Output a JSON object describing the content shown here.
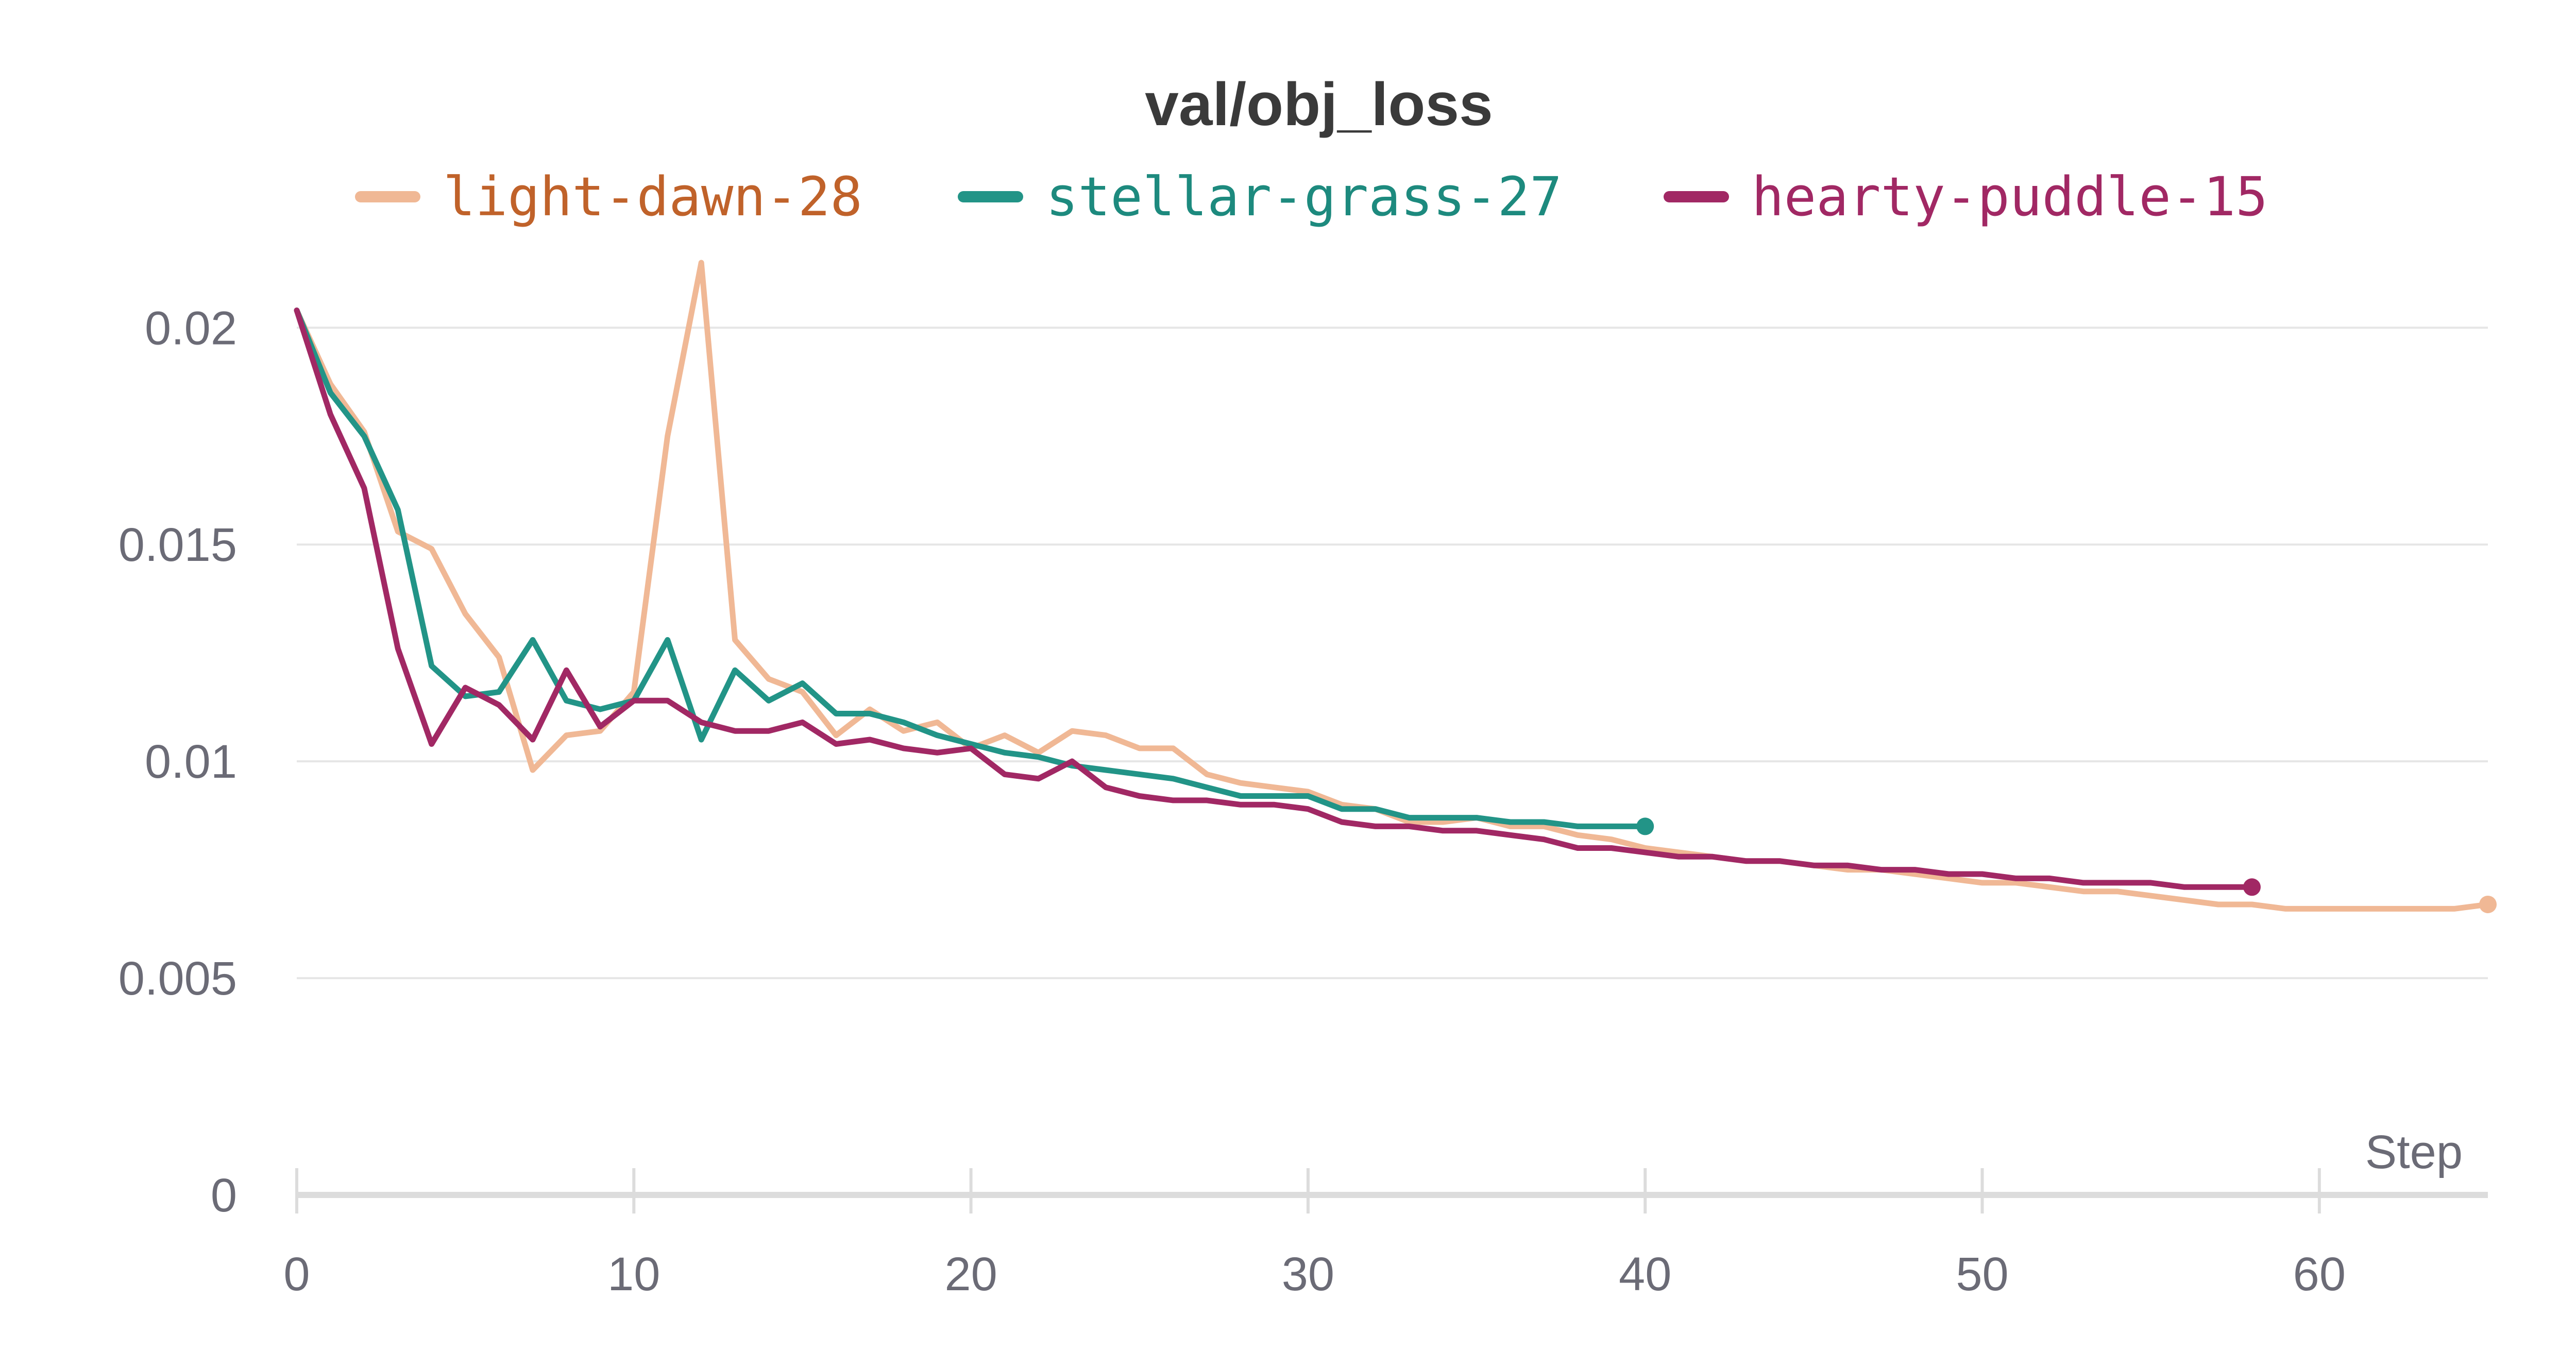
{
  "chart_data": {
    "type": "line",
    "title": "val/obj_loss",
    "xlabel": "Step",
    "ylabel": "",
    "xlim": [
      0,
      65
    ],
    "ylim": [
      0,
      0.0215
    ],
    "x_ticks": [
      "0",
      "10",
      "20",
      "30",
      "40",
      "50",
      "60"
    ],
    "y_ticks": [
      "0",
      "0.005",
      "0.01",
      "0.015",
      "0.02"
    ],
    "grid": true,
    "legend_position": "top-center",
    "series": [
      {
        "name": "light-dawn-28",
        "color": "#f0b895",
        "label_color": "#c0622a",
        "x": [
          0,
          1,
          2,
          3,
          4,
          5,
          6,
          7,
          8,
          9,
          10,
          11,
          12,
          13,
          14,
          15,
          16,
          17,
          18,
          19,
          20,
          21,
          22,
          23,
          24,
          25,
          26,
          27,
          28,
          29,
          30,
          31,
          32,
          33,
          34,
          35,
          36,
          37,
          38,
          39,
          40,
          41,
          42,
          43,
          44,
          45,
          46,
          47,
          48,
          49,
          50,
          51,
          52,
          53,
          54,
          55,
          56,
          57,
          58,
          59,
          60,
          61,
          62,
          63,
          64,
          65
        ],
        "values": [
          0.0204,
          0.0187,
          0.0176,
          0.0153,
          0.0149,
          0.0134,
          0.0124,
          0.0098,
          0.0106,
          0.0107,
          0.0116,
          0.0175,
          0.0215,
          0.0128,
          0.0119,
          0.0116,
          0.0106,
          0.0112,
          0.0107,
          0.0109,
          0.0103,
          0.0106,
          0.0102,
          0.0107,
          0.0106,
          0.0103,
          0.0103,
          0.0097,
          0.0095,
          0.0094,
          0.0093,
          0.009,
          0.0089,
          0.0086,
          0.0086,
          0.0087,
          0.0085,
          0.0085,
          0.0083,
          0.0082,
          0.008,
          0.0079,
          0.0078,
          0.0077,
          0.0077,
          0.0076,
          0.0075,
          0.0075,
          0.0074,
          0.0073,
          0.0072,
          0.0072,
          0.0071,
          0.007,
          0.007,
          0.0069,
          0.0068,
          0.0067,
          0.0067,
          0.0066,
          0.0066,
          0.0066,
          0.0066,
          0.0066,
          0.0066,
          0.0067
        ]
      },
      {
        "name": "stellar-grass-27",
        "color": "#229487",
        "label_color": "#1d8a7e",
        "x": [
          0,
          1,
          2,
          3,
          4,
          5,
          6,
          7,
          8,
          9,
          10,
          11,
          12,
          13,
          14,
          15,
          16,
          17,
          18,
          19,
          20,
          21,
          22,
          23,
          24,
          25,
          26,
          27,
          28,
          29,
          30,
          31,
          32,
          33,
          34,
          35,
          36,
          37,
          38,
          39,
          40
        ],
        "values": [
          0.0204,
          0.0185,
          0.0175,
          0.0158,
          0.0122,
          0.0115,
          0.0116,
          0.0128,
          0.0114,
          0.0112,
          0.0114,
          0.0128,
          0.0105,
          0.0121,
          0.0114,
          0.0118,
          0.0111,
          0.0111,
          0.0109,
          0.0106,
          0.0104,
          0.0102,
          0.0101,
          0.0099,
          0.0098,
          0.0097,
          0.0096,
          0.0094,
          0.0092,
          0.0092,
          0.0092,
          0.0089,
          0.0089,
          0.0087,
          0.0087,
          0.0087,
          0.0086,
          0.0086,
          0.0085,
          0.0085,
          0.0085
        ]
      },
      {
        "name": "hearty-puddle-15",
        "color": "#a12864",
        "label_color": "#a12864",
        "x": [
          0,
          1,
          2,
          3,
          4,
          5,
          6,
          7,
          8,
          9,
          10,
          11,
          12,
          13,
          14,
          15,
          16,
          17,
          18,
          19,
          20,
          21,
          22,
          23,
          24,
          25,
          26,
          27,
          28,
          29,
          30,
          31,
          32,
          33,
          34,
          35,
          36,
          37,
          38,
          39,
          40,
          41,
          42,
          43,
          44,
          45,
          46,
          47,
          48,
          49,
          50,
          51,
          52,
          53,
          54,
          55,
          56,
          57,
          58
        ],
        "values": [
          0.0204,
          0.018,
          0.0163,
          0.0126,
          0.0104,
          0.0117,
          0.0113,
          0.0105,
          0.0121,
          0.0108,
          0.0114,
          0.0114,
          0.0109,
          0.0107,
          0.0107,
          0.0109,
          0.0104,
          0.0105,
          0.0103,
          0.0102,
          0.0103,
          0.0097,
          0.0096,
          0.01,
          0.0094,
          0.0092,
          0.0091,
          0.0091,
          0.009,
          0.009,
          0.0089,
          0.0086,
          0.0085,
          0.0085,
          0.0084,
          0.0084,
          0.0083,
          0.0082,
          0.008,
          0.008,
          0.0079,
          0.0078,
          0.0078,
          0.0077,
          0.0077,
          0.0076,
          0.0076,
          0.0075,
          0.0075,
          0.0074,
          0.0074,
          0.0073,
          0.0073,
          0.0072,
          0.0072,
          0.0072,
          0.0071,
          0.0071,
          0.0071
        ]
      }
    ]
  }
}
